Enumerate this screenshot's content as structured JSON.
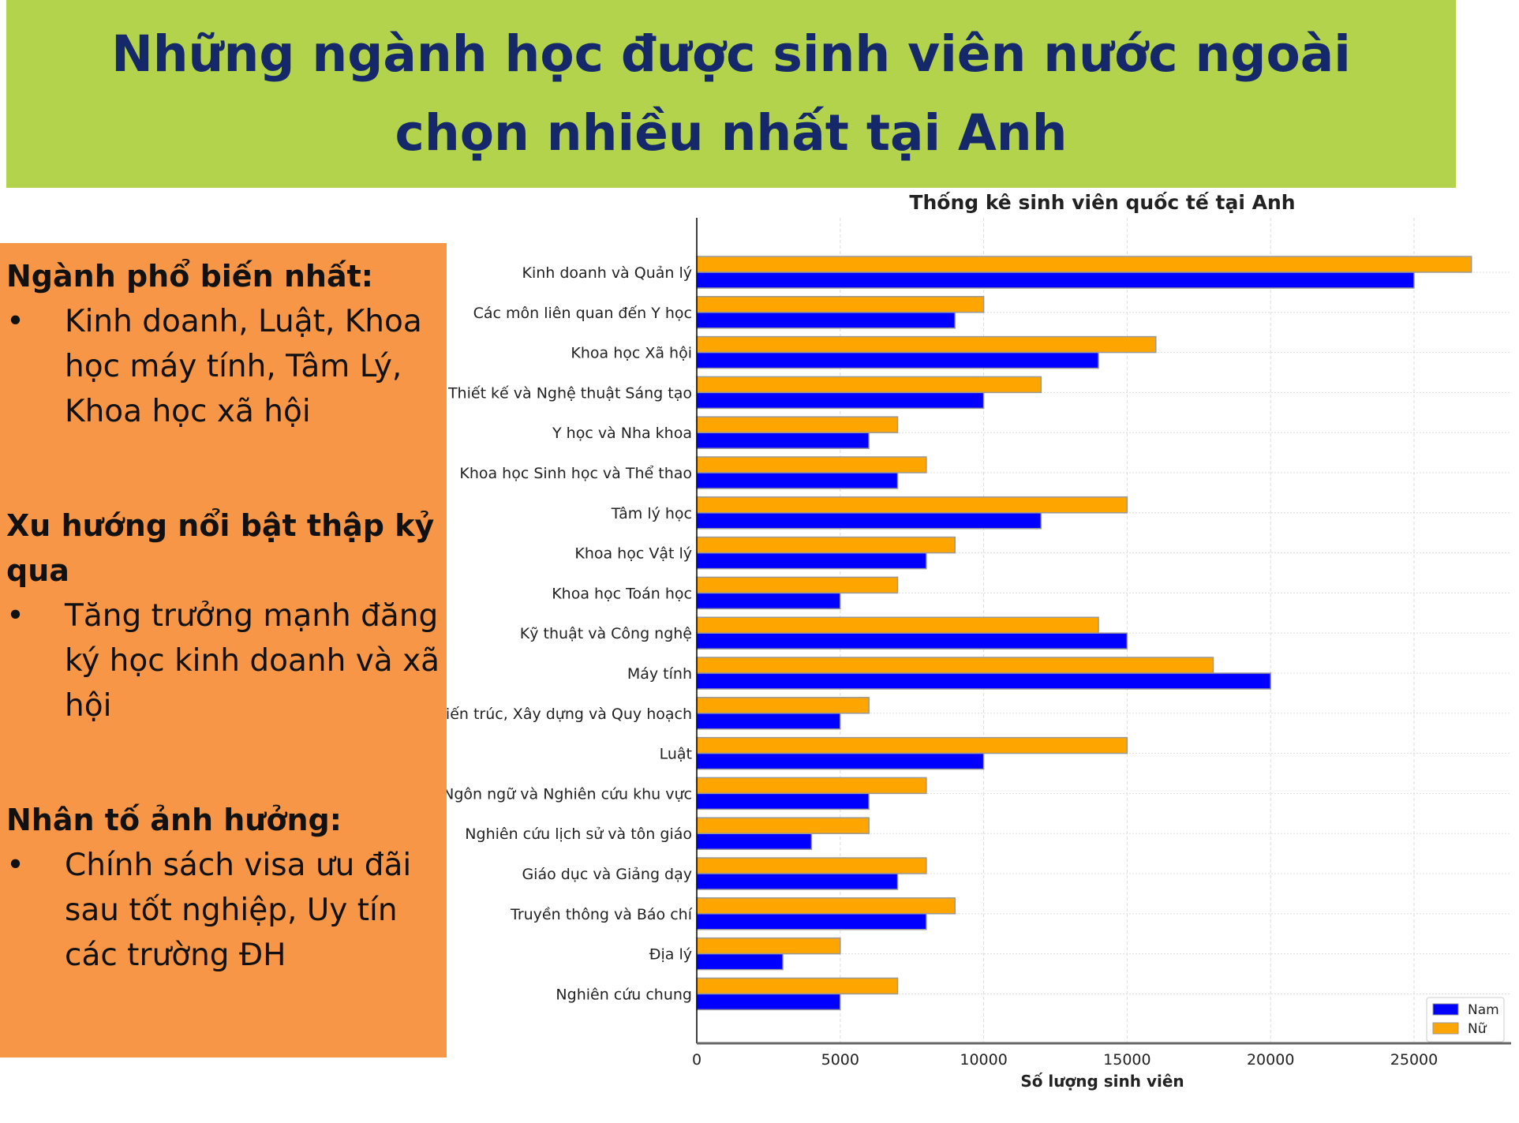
{
  "header": {
    "title_line1": "Những ngành học được sinh viên nước ngoài",
    "title_line2": "chọn nhiều nhất tại Anh"
  },
  "panel": {
    "sections": [
      {
        "heading": "Ngành phổ biến nhất:",
        "bullet": "Kinh doanh, Luật, Khoa học máy tính, Tâm Lý, Khoa học xã hội"
      },
      {
        "heading": "Xu hướng nổi bật thập kỷ qua",
        "bullet": "Tăng trưởng mạnh đăng ký học kinh doanh và xã hội"
      },
      {
        "heading": "Nhân tố ảnh hưởng:",
        "bullet": "Chính sách visa ưu đãi sau tốt nghiệp, Uy tín các trường ĐH"
      }
    ],
    "bullet_char": "•"
  },
  "chart_data": {
    "type": "bar",
    "orientation": "horizontal",
    "title": "Thống kê sinh viên quốc tế tại Anh",
    "xlabel": "Số lượng sinh viên",
    "ylabel": "",
    "xlim": [
      0,
      28000
    ],
    "xticks": [
      0,
      5000,
      10000,
      15000,
      20000,
      25000
    ],
    "grid": true,
    "legend_position": "bottom-right",
    "categories": [
      "Kinh doanh và Quản lý",
      "Các môn liên quan đến Y học",
      "Khoa học Xã hội",
      "Thiết kế và Nghệ thuật Sáng tạo",
      "Y học và Nha khoa",
      "Khoa học Sinh học và Thể thao",
      "Tâm lý học",
      "Khoa học Vật lý",
      "Khoa học Toán học",
      "Kỹ thuật và Công nghệ",
      "Máy tính",
      "Kiến trúc, Xây dựng và Quy hoạch",
      "Luật",
      "Ngôn ngữ và Nghiên cứu khu vực",
      "Nghiên cứu lịch sử và tôn giáo",
      "Giáo dục và Giảng dạy",
      "Truyền thông và Báo chí",
      "Địa lý",
      "Nghiên cứu chung"
    ],
    "series": [
      {
        "name": "Nam",
        "color": "#0000ff",
        "values": [
          25000,
          9000,
          14000,
          10000,
          6000,
          7000,
          12000,
          8000,
          5000,
          15000,
          20000,
          5000,
          10000,
          6000,
          4000,
          7000,
          8000,
          3000,
          5000
        ]
      },
      {
        "name": "Nữ",
        "color": "#ffa500",
        "values": [
          27000,
          10000,
          16000,
          12000,
          7000,
          8000,
          15000,
          9000,
          7000,
          14000,
          18000,
          6000,
          15000,
          8000,
          6000,
          8000,
          9000,
          5000,
          7000
        ]
      }
    ]
  }
}
